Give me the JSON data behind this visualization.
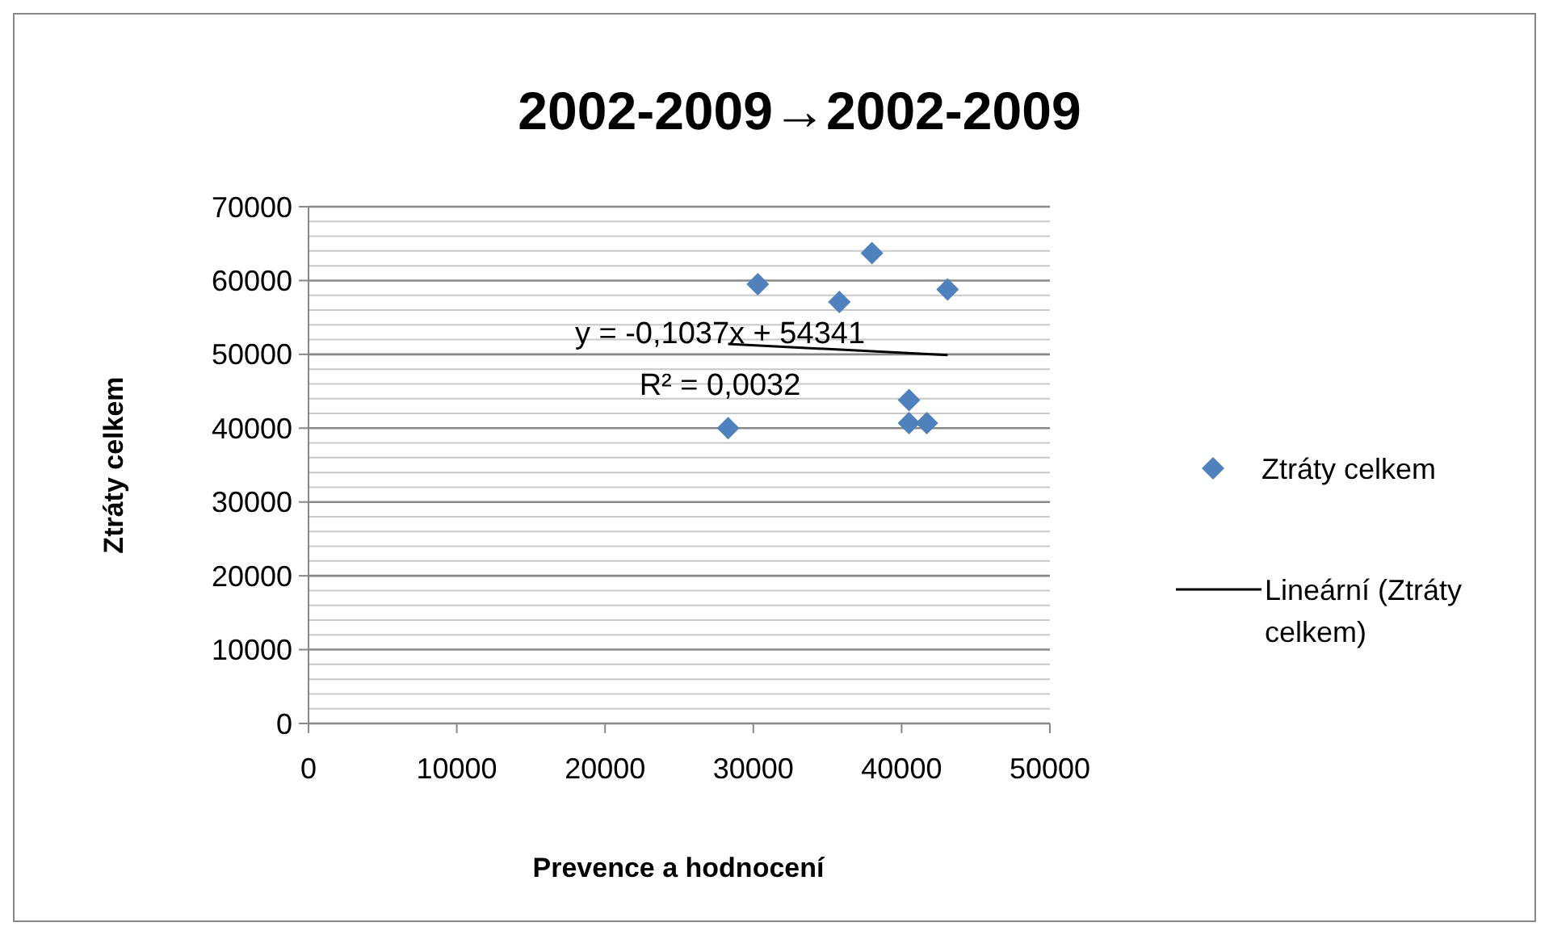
{
  "chart_data": {
    "type": "scatter",
    "title": "2002-2009→2002-2009",
    "xlabel": "Prevence a hodnocení",
    "ylabel": "Ztráty celkem",
    "xlim": [
      0,
      50000
    ],
    "xticks": [
      0,
      10000,
      20000,
      30000,
      40000,
      50000
    ],
    "ylim": [
      0,
      70000
    ],
    "yticks": [
      0,
      {
        "value": 2000,
        "label": null
      },
      {
        "value": 4000,
        "label": null
      },
      {
        "value": 6000,
        "label": null
      },
      {
        "value": 8000,
        "label": null
      },
      10000,
      {
        "value": 12000,
        "label": null
      },
      {
        "value": 14000,
        "label": null
      },
      {
        "value": 16000,
        "label": null
      },
      {
        "value": 18000,
        "label": null
      },
      20000,
      {
        "value": 22000,
        "label": null
      },
      {
        "value": 24000,
        "label": null
      },
      {
        "value": 26000,
        "label": null
      },
      {
        "value": 28000,
        "label": null
      },
      30000,
      {
        "value": 32000,
        "label": null
      },
      {
        "value": 34000,
        "label": null
      },
      {
        "value": 36000,
        "label": null
      },
      {
        "value": 38000,
        "label": null
      },
      40000,
      {
        "value": 42000,
        "label": null
      },
      {
        "value": 44000,
        "label": null
      },
      {
        "value": 46000,
        "label": null
      },
      {
        "value": 48000,
        "label": null
      },
      50000,
      {
        "value": 52000,
        "label": null
      },
      {
        "value": 54000,
        "label": null
      },
      {
        "value": 56000,
        "label": null
      },
      {
        "value": 58000,
        "label": null
      },
      60000,
      {
        "value": 62000,
        "label": null
      },
      {
        "value": 64000,
        "label": null
      },
      {
        "value": 66000,
        "label": null
      },
      {
        "value": 68000,
        "label": null
      },
      70000
    ],
    "grid": "y",
    "legend": "right",
    "series": [
      {
        "name": "Ztráty celkem",
        "marker": "diamond",
        "color": "#4f81bd",
        "x": [
          28300,
          30300,
          35800,
          38000,
          40500,
          40500,
          41700,
          43100
        ],
        "values": [
          40000,
          59500,
          57100,
          63700,
          43800,
          40700,
          40700,
          58800
        ]
      },
      {
        "name": "Lineární (Ztráty celkem)",
        "type": "line",
        "color": "#000000",
        "marker": "none",
        "line_style": "solid",
        "x": [
          28300,
          43100
        ],
        "values": [
          51400,
          49900
        ]
      }
    ],
    "annotations": [
      "y = -0,1037x + 54341",
      "R² = 0,0032"
    ]
  }
}
